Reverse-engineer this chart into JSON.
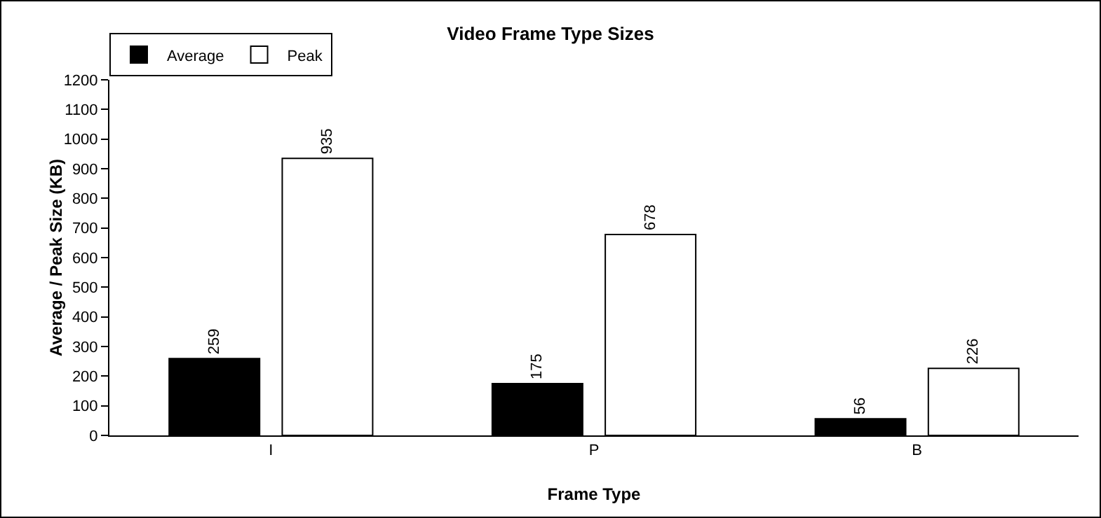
{
  "chart_data": {
    "type": "bar",
    "title": "Video Frame Type Sizes",
    "xlabel": "Frame Type",
    "ylabel": "Average / Peak Size (KB)",
    "categories": [
      "I",
      "P",
      "B"
    ],
    "series": [
      {
        "name": "Average",
        "color": "#000000",
        "values": [
          259,
          175,
          56
        ]
      },
      {
        "name": "Peak",
        "color": "#ffffff",
        "values": [
          935,
          678,
          226
        ]
      }
    ],
    "ylim": [
      0,
      1200
    ],
    "yticks": [
      0,
      100,
      200,
      300,
      400,
      500,
      600,
      700,
      800,
      900,
      1000,
      1100,
      1200
    ],
    "data_labels": true,
    "legend": "top left",
    "grid": false
  }
}
